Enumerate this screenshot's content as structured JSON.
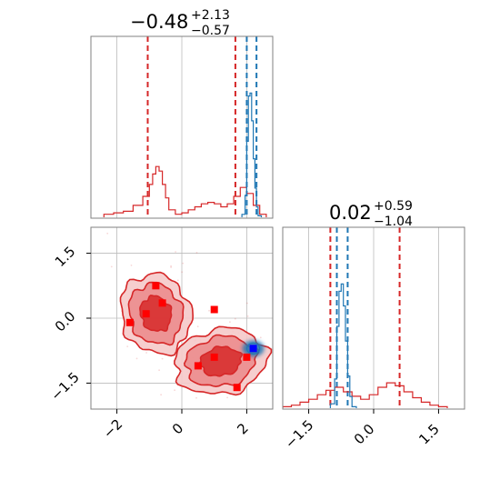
{
  "chart_data": {
    "type": "corner",
    "colors": {
      "red": "#d62728",
      "blue": "#1f77b4",
      "grid": "#bbbbbb",
      "frame": "#808080"
    },
    "params": [
      {
        "title_value": "−0.48",
        "title_plus": "+2.13",
        "title_minus": "−0.57",
        "range": [
          -2.8,
          2.8
        ],
        "ticks": [
          {
            "value": -2,
            "label": "−2"
          },
          {
            "value": 0,
            "label": "0"
          },
          {
            "value": 2,
            "label": "2"
          }
        ],
        "red_quantiles": [
          -1.05,
          1.65
        ],
        "blue_quantiles": [
          2.0,
          2.3
        ],
        "red_hist": {
          "edges": [
            -2.4,
            -2.1,
            -1.8,
            -1.5,
            -1.2,
            -1.0,
            -0.9,
            -0.8,
            -0.7,
            -0.6,
            -0.5,
            -0.4,
            -0.2,
            0.0,
            0.2,
            0.4,
            0.6,
            0.8,
            1.0,
            1.2,
            1.4,
            1.6,
            1.8,
            2.0,
            2.2,
            2.4,
            2.6
          ],
          "counts": [
            0.02,
            0.03,
            0.04,
            0.08,
            0.14,
            0.22,
            0.29,
            0.34,
            0.31,
            0.22,
            0.13,
            0.05,
            0.02,
            0.03,
            0.05,
            0.07,
            0.09,
            0.1,
            0.09,
            0.07,
            0.09,
            0.14,
            0.2,
            0.16,
            0.08,
            0.02
          ]
        },
        "blue_hist": {
          "edges": [
            1.85,
            1.95,
            2.0,
            2.05,
            2.1,
            2.15,
            2.2,
            2.25,
            2.3,
            2.35,
            2.45
          ],
          "counts": [
            0.02,
            0.15,
            0.52,
            0.83,
            0.85,
            0.66,
            0.4,
            0.2,
            0.07,
            0.01
          ]
        }
      },
      {
        "title_value": "0.02",
        "title_plus": "+0.59",
        "title_minus": "−1.04",
        "range": [
          -2.1,
          2.1
        ],
        "ticks": [
          {
            "value": -1.5,
            "label": "−1.5"
          },
          {
            "value": 0,
            "label": "0.0"
          },
          {
            "value": 1.5,
            "label": "1.5"
          }
        ],
        "red_quantiles": [
          -1.0,
          0.6
        ],
        "blue_quantiles": [
          -0.85,
          -0.6
        ],
        "red_hist": {
          "edges": [
            -2.1,
            -1.9,
            -1.7,
            -1.5,
            -1.3,
            -1.1,
            -0.9,
            -0.7,
            -0.5,
            -0.3,
            -0.1,
            0.1,
            0.3,
            0.5,
            0.7,
            0.9,
            1.1,
            1.3,
            1.5,
            1.7
          ],
          "counts": [
            0.01,
            0.02,
            0.04,
            0.06,
            0.09,
            0.12,
            0.14,
            0.11,
            0.08,
            0.06,
            0.09,
            0.14,
            0.17,
            0.15,
            0.11,
            0.07,
            0.04,
            0.02,
            0.01
          ]
        },
        "blue_hist": {
          "edges": [
            -1.0,
            -0.9,
            -0.85,
            -0.8,
            -0.75,
            -0.7,
            -0.65,
            -0.6,
            -0.55,
            -0.5,
            -0.4
          ],
          "counts": [
            0.03,
            0.2,
            0.56,
            0.8,
            0.85,
            0.7,
            0.46,
            0.22,
            0.08,
            0.01
          ]
        }
      }
    ],
    "joint": {
      "red_modes": [
        {
          "x": -0.8,
          "y": 0.1,
          "sx": 0.85,
          "sy": 0.75,
          "rot": -20
        },
        {
          "x": 1.2,
          "y": -1.0,
          "sx": 1.15,
          "sy": 0.6,
          "rot": -10
        }
      ],
      "blue_mode": {
        "x": 2.2,
        "y": -0.7
      },
      "red_points": [
        {
          "x": -0.8,
          "y": 0.75
        },
        {
          "x": -0.6,
          "y": 0.35
        },
        {
          "x": -1.1,
          "y": 0.1
        },
        {
          "x": -1.6,
          "y": -0.1
        },
        {
          "x": 1.0,
          "y": 0.2
        },
        {
          "x": 0.5,
          "y": -1.1
        },
        {
          "x": 1.0,
          "y": -0.9
        },
        {
          "x": 1.7,
          "y": -1.6
        },
        {
          "x": 2.0,
          "y": -0.9
        }
      ],
      "blue_points": [
        {
          "x": 2.2,
          "y": -0.7
        }
      ]
    }
  }
}
